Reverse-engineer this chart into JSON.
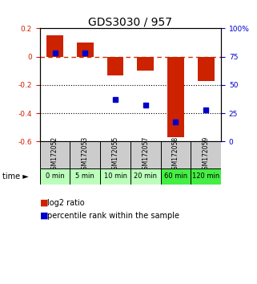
{
  "title": "GDS3030 / 957",
  "samples": [
    "GSM172052",
    "GSM172053",
    "GSM172055",
    "GSM172057",
    "GSM172058",
    "GSM172059"
  ],
  "time_labels": [
    "0 min",
    "5 min",
    "10 min",
    "20 min",
    "60 min",
    "120 min"
  ],
  "log2_ratio": [
    0.15,
    0.1,
    -0.13,
    -0.1,
    -0.57,
    -0.17
  ],
  "percentile_rank": [
    78,
    78,
    37,
    32,
    17,
    28
  ],
  "ylim_left": [
    -0.6,
    0.2
  ],
  "ylim_right": [
    0,
    100
  ],
  "bar_color": "#cc2200",
  "dot_color": "#0000cc",
  "dashed_line_color": "#cc3300",
  "bg_color": "#ffffff",
  "sample_bg": "#cccccc",
  "time_bg_colors": [
    "#bbffbb",
    "#bbffbb",
    "#bbffbb",
    "#bbffbb",
    "#44ee44",
    "#44ee44"
  ],
  "title_fontsize": 10,
  "tick_fontsize": 6.5,
  "legend_fontsize": 7,
  "sample_fontsize": 5.5,
  "time_fontsize": 6
}
